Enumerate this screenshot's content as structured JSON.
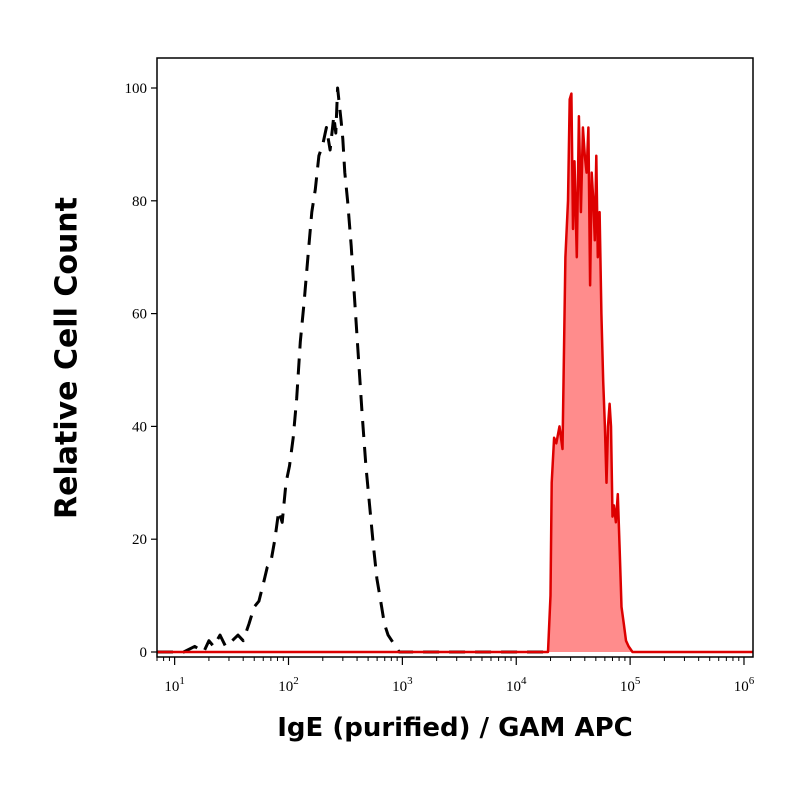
{
  "chart_data": {
    "type": "area",
    "xlabel": "IgE (purified) / GAM APC",
    "ylabel": "Relative Cell Count",
    "x_scale": "log",
    "xlim": [
      7,
      1200000
    ],
    "ylim": [
      0,
      105
    ],
    "x_ticks": [
      {
        "value": 10,
        "base": "10",
        "exp": "1"
      },
      {
        "value": 100,
        "base": "10",
        "exp": "2"
      },
      {
        "value": 1000,
        "base": "10",
        "exp": "3"
      },
      {
        "value": 10000,
        "base": "10",
        "exp": "4"
      },
      {
        "value": 100000,
        "base": "10",
        "exp": "5"
      },
      {
        "value": 1000000,
        "base": "10",
        "exp": "6"
      }
    ],
    "y_ticks": [
      0,
      20,
      40,
      60,
      80,
      100
    ],
    "grid": false,
    "legend": "none",
    "series": [
      {
        "style": "dashed",
        "color": "#000000",
        "fill": "none",
        "x": [
          7,
          9,
          12,
          15,
          18,
          20,
          22,
          25,
          28,
          32,
          36,
          40,
          45,
          50,
          55,
          60,
          65,
          70,
          76,
          82,
          88,
          95,
          102,
          110,
          118,
          127,
          137,
          148,
          160,
          172,
          185,
          200,
          215,
          232,
          250,
          260,
          270,
          290,
          300,
          312,
          330,
          355,
          382,
          412,
          444,
          478,
          515,
          555,
          598,
          645,
          695,
          750,
          808,
          870,
          940,
          1000,
          1200,
          3000,
          10000,
          20000
        ],
        "y": [
          0,
          0,
          0,
          1,
          0,
          2,
          1,
          3,
          1,
          2,
          3,
          2,
          5,
          8,
          9,
          12,
          15,
          16,
          20,
          25,
          23,
          30,
          33,
          38,
          45,
          55,
          62,
          70,
          78,
          82,
          88,
          90,
          93,
          89,
          95,
          92,
          100,
          94,
          91,
          85,
          80,
          72,
          62,
          52,
          42,
          33,
          26,
          19,
          13,
          9,
          5,
          3,
          2,
          1,
          0,
          0,
          0,
          0,
          0,
          0
        ]
      },
      {
        "style": "solid",
        "color": "#dd0000",
        "fill": "#ff8c8c",
        "x": [
          7,
          10000,
          19000,
          20000,
          20500,
          21500,
          22500,
          24000,
          25500,
          27000,
          28500,
          29500,
          30500,
          31500,
          32500,
          34000,
          35500,
          37000,
          38500,
          40000,
          41500,
          43000,
          44500,
          46000,
          47500,
          49000,
          50500,
          52000,
          54000,
          56000,
          58000,
          60000,
          62000,
          64000,
          66000,
          68000,
          70000,
          72000,
          75000,
          78000,
          81000,
          84000,
          88000,
          92000,
          97000,
          105000,
          120000,
          300000,
          1200000
        ],
        "y": [
          0,
          0,
          0,
          10,
          30,
          38,
          37,
          40,
          36,
          70,
          80,
          98,
          99,
          75,
          87,
          70,
          95,
          78,
          93,
          88,
          85,
          93,
          65,
          85,
          80,
          73,
          88,
          70,
          78,
          60,
          48,
          40,
          30,
          40,
          44,
          40,
          24,
          26,
          23,
          28,
          18,
          8,
          5,
          2,
          1,
          0,
          0,
          0,
          0
        ]
      }
    ]
  }
}
